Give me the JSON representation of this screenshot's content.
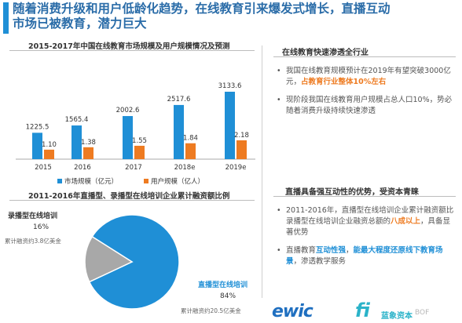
{
  "title": {
    "line1": "随着消费升级和用户低龄化趋势，在线教育引来爆发式增长，直播互动",
    "line2": "市场已被教育，潜力巨大"
  },
  "chart1": {
    "heading": "2015-2017年中国在线教育市场规模及用户规模情况及预测",
    "legend_market": "市场规模（亿元）",
    "legend_users": "用户规模（亿人）"
  },
  "chart2": {
    "heading": "2011-2016年直播型、录播型在线培训企业累计融资额比例",
    "recorded_label": "录播型在线培训",
    "recorded_pct": "16%",
    "recorded_amount": "累计融资约3.8亿美金",
    "live_label": "直播型在线培训",
    "live_pct": "84%",
    "live_amount": "累计融资约20.5亿美金"
  },
  "right": {
    "sec1_head": "在线教育快速渗透全行业",
    "sec2_head": "直播具备强互动性的优势，受资本青睐"
  },
  "bullets1": [
    {
      "parts": [
        {
          "t": "我国在线教育规模预计在2019年有望突破3000亿元，",
          "c": ""
        },
        {
          "t": "占教育行业整体10%左右",
          "c": "hlo"
        }
      ]
    },
    {
      "parts": [
        {
          "t": "现阶段我国在线教育用户规模占总人口10%，势必随着消费升级持续快速渗透",
          "c": ""
        }
      ]
    }
  ],
  "bullets2": [
    {
      "parts": [
        {
          "t": "2011-2016年，直播型在线培训企业累计融资额比录播型在线培训企业融资总额的",
          "c": ""
        },
        {
          "t": "八成以上",
          "c": "hlo"
        },
        {
          "t": "，具备显著优势",
          "c": ""
        }
      ]
    },
    {
      "parts": [
        {
          "t": "直播教育",
          "c": ""
        },
        {
          "t": "互动性强",
          "c": "hl"
        },
        {
          "t": "，",
          "c": ""
        },
        {
          "t": "能最大程度还原线下教育场景",
          "c": "hl"
        },
        {
          "t": "，渗透教学服务",
          "c": ""
        }
      ]
    }
  ],
  "logos": {
    "ewic": "ewic",
    "f": "fi",
    "brand": "蓝象资本",
    "watermark": "BOF"
  },
  "colors": {
    "blue": "#1f8fd6",
    "orange": "#ee7b21",
    "gray": "#a8a8a8",
    "title": "#2a6ca8"
  },
  "chart_data": [
    {
      "type": "bar",
      "title": "2015-2017年中国在线教育市场规模及用户规模情况及预测",
      "categories": [
        "2015",
        "2016",
        "2017",
        "2018e",
        "2019e"
      ],
      "series": [
        {
          "name": "市场规模（亿元）",
          "values": [
            1225.5,
            1565.4,
            2002.6,
            2517.6,
            3133.6
          ],
          "labels": [
            "1225.5",
            "1565.4",
            "2002.6",
            "2517.6",
            "3133.6"
          ]
        },
        {
          "name": "用户规模（亿人）",
          "values": [
            1.1,
            1.38,
            1.55,
            1.84,
            2.18
          ],
          "labels": [
            "1.10",
            "1.38",
            "1.55",
            "1.84",
            "2.18"
          ]
        }
      ],
      "legend": "bottom"
    },
    {
      "type": "pie",
      "title": "2011-2016年直播型、录播型在线培训企业累计融资额比例",
      "categories": [
        "直播型在线培训",
        "录播型在线培训"
      ],
      "values": [
        84,
        16
      ]
    }
  ]
}
